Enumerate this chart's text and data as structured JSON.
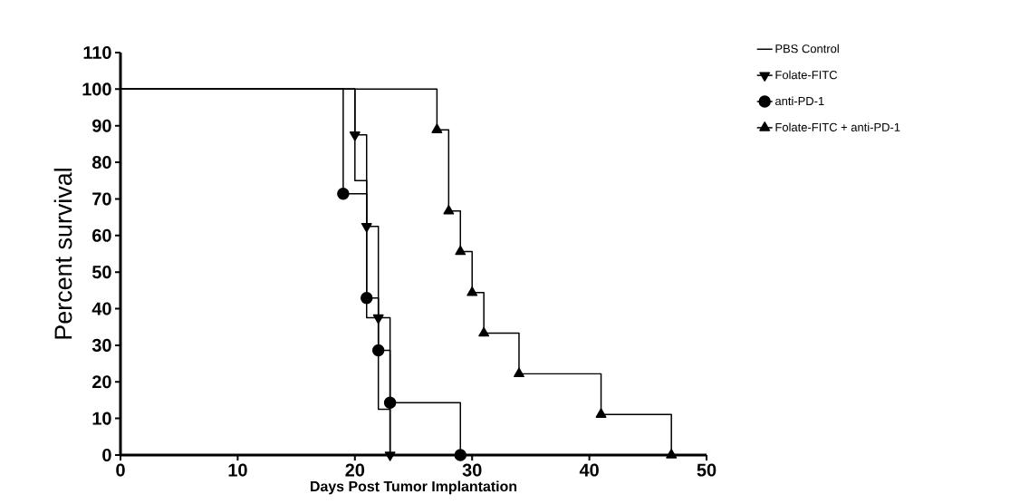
{
  "chart_data": {
    "type": "step",
    "xlabel": "Days Post Tumor Implantation",
    "ylabel": "Percent survival",
    "xlim": [
      0,
      50
    ],
    "xticks": [
      0,
      10,
      20,
      30,
      40,
      50
    ],
    "ylim": [
      0,
      110
    ],
    "yticks": [
      0,
      10,
      20,
      30,
      40,
      50,
      60,
      70,
      80,
      90,
      100,
      110
    ],
    "legend": "top right",
    "grid": false,
    "line_style": "solid",
    "series": [
      {
        "name": "PBS Control",
        "color": "#000000",
        "marker": "none",
        "x": [
          0,
          20,
          21,
          22,
          23
        ],
        "values": [
          100,
          75,
          37.5,
          12.5,
          0
        ]
      },
      {
        "name": "Folate-FITC",
        "color": "#000000",
        "marker": "triangle-down",
        "x": [
          0,
          20,
          21,
          22,
          23
        ],
        "values": [
          100,
          87.5,
          62.5,
          37.5,
          0
        ]
      },
      {
        "name": "anti-PD-1",
        "color": "#000000",
        "marker": "circle",
        "x": [
          0,
          19,
          21,
          22,
          23,
          29
        ],
        "values": [
          100,
          71.4,
          42.9,
          28.6,
          14.3,
          0
        ]
      },
      {
        "name": "Folate-FITC + anti-PD-1",
        "color": "#000000",
        "marker": "triangle",
        "x": [
          0,
          27,
          28,
          29,
          30,
          31,
          34,
          41,
          47
        ],
        "values": [
          100,
          88.9,
          66.7,
          55.6,
          44.4,
          33.3,
          22.2,
          11.1,
          0
        ]
      }
    ]
  }
}
